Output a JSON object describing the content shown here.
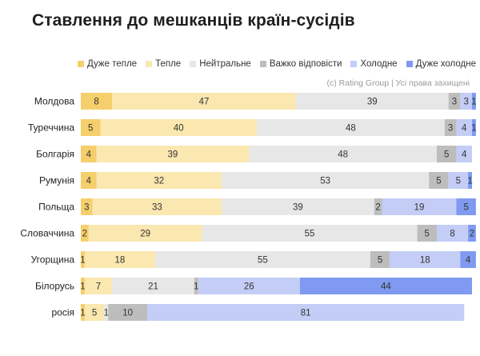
{
  "chart_data": {
    "type": "bar",
    "orientation": "horizontal-stacked-percent",
    "title": "Ставлення до мешканців країн-сусідів",
    "source": "(c) Rating Group | Усі права захищені",
    "legend_position": "top",
    "series": [
      {
        "name": "Дуже тепле",
        "color": "#f5cf6b"
      },
      {
        "name": "Тепле",
        "color": "#fbe7b0"
      },
      {
        "name": "Нейтральне",
        "color": "#e7e7e7"
      },
      {
        "name": "Важко відповісти",
        "color": "#bdbdbd"
      },
      {
        "name": "Холодне",
        "color": "#c3cdf6"
      },
      {
        "name": "Дуже холодне",
        "color": "#7f9af0"
      }
    ],
    "categories": [
      "Молдова",
      "Туреччина",
      "Болгарія",
      "Румунія",
      "Польща",
      "Словаччина",
      "Угорщина",
      "Білорусь",
      "росія"
    ],
    "values": [
      [
        8,
        47,
        39,
        3,
        3,
        1
      ],
      [
        5,
        40,
        48,
        3,
        4,
        1
      ],
      [
        4,
        39,
        48,
        5,
        4,
        0
      ],
      [
        4,
        32,
        53,
        5,
        5,
        1
      ],
      [
        3,
        33,
        39,
        2,
        19,
        5
      ],
      [
        2,
        29,
        55,
        5,
        8,
        2
      ],
      [
        1,
        18,
        55,
        5,
        18,
        4
      ],
      [
        1,
        7,
        21,
        1,
        26,
        44
      ],
      [
        1,
        5,
        1,
        10,
        81,
        0
      ]
    ],
    "xlim": [
      0,
      100
    ]
  }
}
